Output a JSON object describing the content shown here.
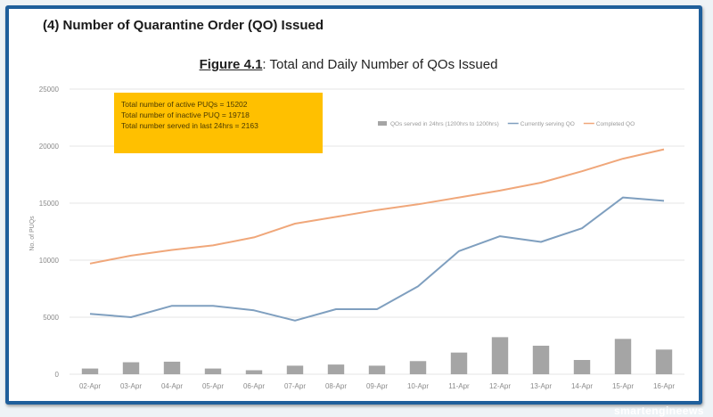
{
  "section_title": "(4)  Number of Quarantine Order (QO) Issued",
  "figure_label": "Figure 4.1",
  "figure_caption": ": Total and Daily Number of QOs Issued",
  "info_box": {
    "lines": [
      "Total number of active PUQs = 15202",
      "Total number of inactive PUQ = 19718",
      "Total number served in last 24hrs = 2163"
    ],
    "color": "#ffc000"
  },
  "watermark": "smartengineews",
  "chart_data": {
    "type": "bar+line",
    "title": "Total and Daily Number of QOs Issued",
    "xlabel": "",
    "ylabel": "No. of PUQs",
    "ylim": [
      0,
      25000
    ],
    "yticks": [
      "0",
      "5000",
      "10000",
      "15000",
      "20000",
      "25000"
    ],
    "ytick_values": [
      0,
      5000,
      10000,
      15000,
      20000,
      25000
    ],
    "grid": true,
    "legend_position": "top-right",
    "categories": [
      "02-Apr",
      "03-Apr",
      "04-Apr",
      "05-Apr",
      "06-Apr",
      "07-Apr",
      "08-Apr",
      "09-Apr",
      "10-Apr",
      "11-Apr",
      "12-Apr",
      "13-Apr",
      "14-Apr",
      "15-Apr",
      "16-Apr"
    ],
    "series": [
      {
        "name": "QOs served in 24hrs (1200hrs to 1200hrs)",
        "type": "bar",
        "color": "#a5a5a5",
        "values": [
          500,
          1050,
          1100,
          500,
          350,
          750,
          850,
          750,
          1150,
          1900,
          3250,
          2500,
          1250,
          3100,
          2163
        ]
      },
      {
        "name": "Currently serving QO",
        "type": "line",
        "color": "#7f9fbf",
        "values": [
          5300,
          5000,
          6000,
          6000,
          5600,
          4700,
          5700,
          5700,
          7700,
          10800,
          12100,
          11600,
          12800,
          15500,
          15202
        ]
      },
      {
        "name": "Completed QO",
        "type": "line",
        "color": "#f0a77a",
        "values": [
          9700,
          10400,
          10900,
          11300,
          12000,
          13200,
          13800,
          14400,
          14900,
          15500,
          16100,
          16800,
          17800,
          18900,
          19718
        ]
      }
    ]
  }
}
